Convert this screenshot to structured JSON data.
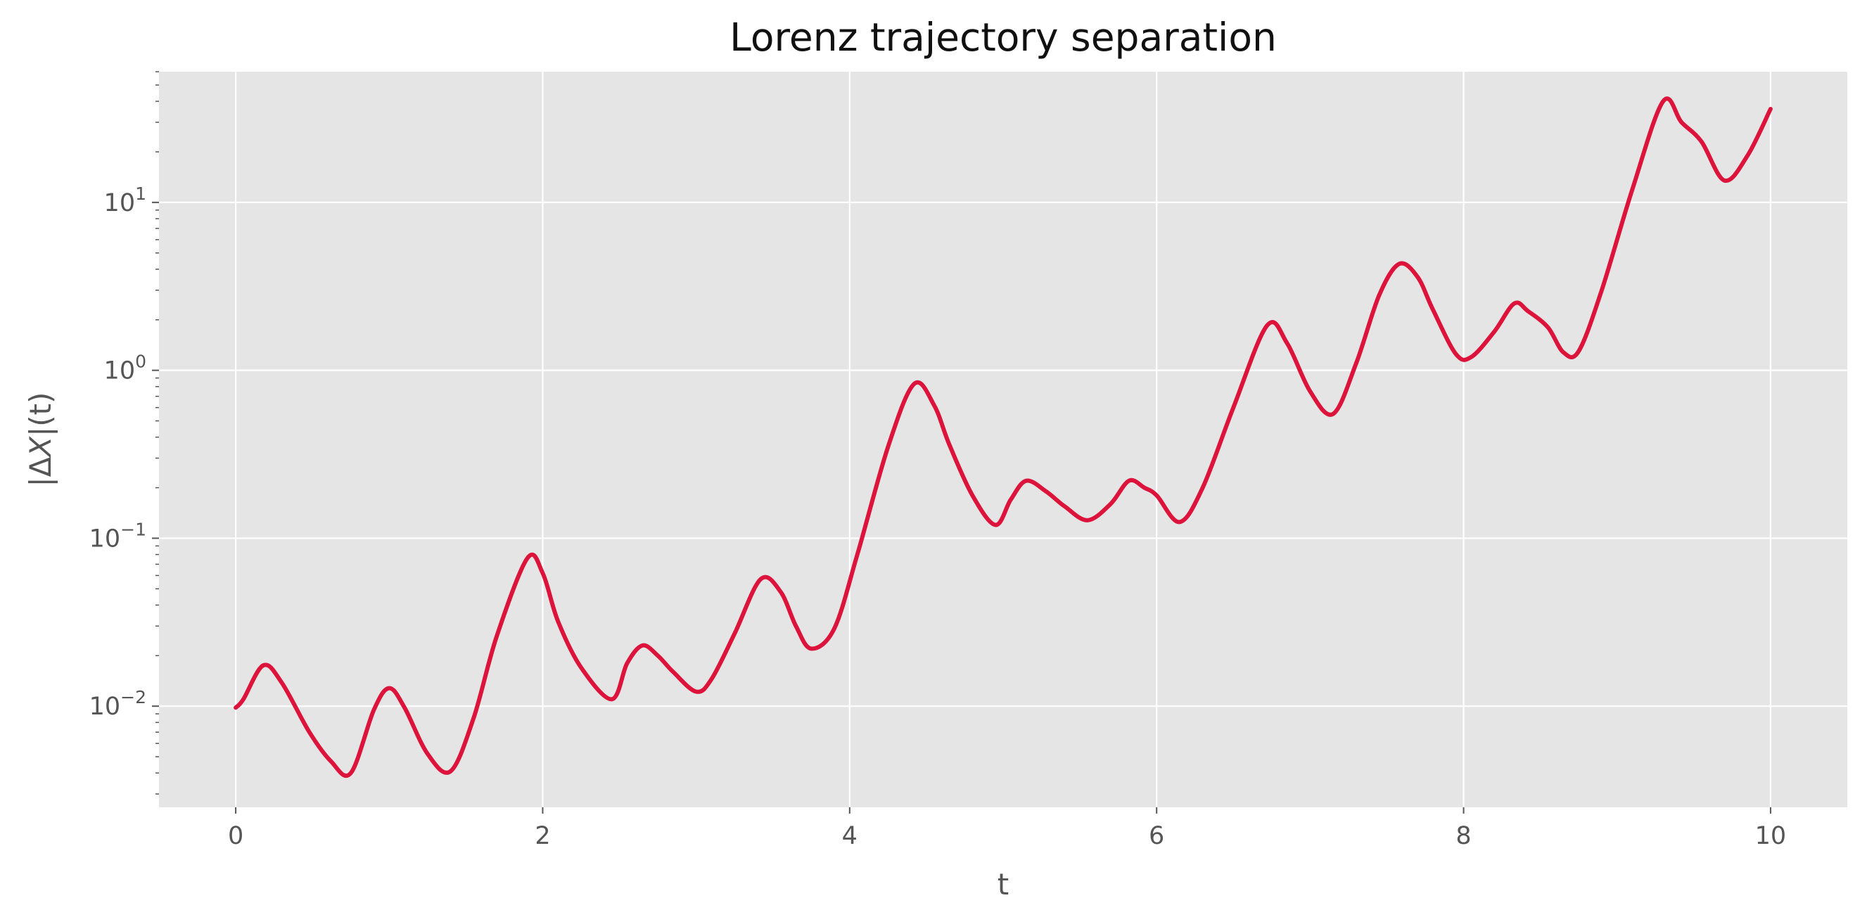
{
  "chart_data": {
    "type": "line",
    "title": "Lorenz trajectory separation",
    "xlabel": "t",
    "ylabel": "|ΔX|(t)",
    "ylabel_parts": {
      "prefix": "|Δ",
      "italic": "X",
      "suffix": "|(t)"
    },
    "yscale": "log",
    "xlim": [
      -0.5,
      10.5
    ],
    "ylim": [
      0.0025,
      60
    ],
    "grid": true,
    "x_ticks": [
      0,
      2,
      4,
      6,
      8,
      10
    ],
    "x_tick_labels": [
      "0",
      "2",
      "4",
      "6",
      "8",
      "10"
    ],
    "y_ticks": [
      0.01,
      0.1,
      1,
      10
    ],
    "y_tick_labels": [
      {
        "base": "10",
        "exp": "−2"
      },
      {
        "base": "10",
        "exp": "−1"
      },
      {
        "base": "10",
        "exp": "0"
      },
      {
        "base": "10",
        "exp": "1"
      }
    ],
    "colors": {
      "line": "#dc143c",
      "plot_bg": "#e5e5e5",
      "grid": "#ffffff"
    },
    "series": [
      {
        "x": [
          0,
          0.05,
          0.18,
          0.3,
          0.48,
          0.62,
          0.75,
          0.9,
          1.0,
          1.1,
          1.25,
          1.4,
          1.55,
          1.7,
          1.9,
          2.0,
          2.1,
          2.25,
          2.45,
          2.55,
          2.65,
          2.75,
          2.85,
          3.0,
          3.1,
          3.25,
          3.42,
          3.55,
          3.65,
          3.75,
          3.9,
          4.05,
          4.25,
          4.42,
          4.55,
          4.65,
          4.8,
          4.95,
          5.05,
          5.15,
          5.28,
          5.4,
          5.55,
          5.7,
          5.82,
          5.92,
          6.0,
          6.15,
          6.3,
          6.5,
          6.72,
          6.85,
          7.0,
          7.15,
          7.3,
          7.45,
          7.58,
          7.7,
          7.8,
          7.95,
          8.05,
          8.2,
          8.33,
          8.42,
          8.55,
          8.65,
          8.75,
          8.9,
          9.1,
          9.3,
          9.42,
          9.55,
          9.7,
          9.85,
          10.0
        ],
        "y": [
          0.0098,
          0.011,
          0.0175,
          0.0138,
          0.007,
          0.0047,
          0.004,
          0.0095,
          0.0128,
          0.0098,
          0.0052,
          0.0041,
          0.0085,
          0.026,
          0.076,
          0.062,
          0.032,
          0.017,
          0.011,
          0.018,
          0.023,
          0.02,
          0.016,
          0.0122,
          0.0145,
          0.027,
          0.057,
          0.048,
          0.03,
          0.022,
          0.029,
          0.08,
          0.35,
          0.83,
          0.62,
          0.36,
          0.18,
          0.12,
          0.17,
          0.22,
          0.19,
          0.155,
          0.128,
          0.16,
          0.22,
          0.2,
          0.18,
          0.125,
          0.2,
          0.6,
          1.85,
          1.45,
          0.75,
          0.55,
          1.1,
          2.8,
          4.3,
          3.6,
          2.3,
          1.25,
          1.2,
          1.7,
          2.5,
          2.25,
          1.8,
          1.28,
          1.3,
          3.0,
          12,
          40,
          30,
          23,
          13.5,
          19,
          36
        ]
      }
    ]
  }
}
